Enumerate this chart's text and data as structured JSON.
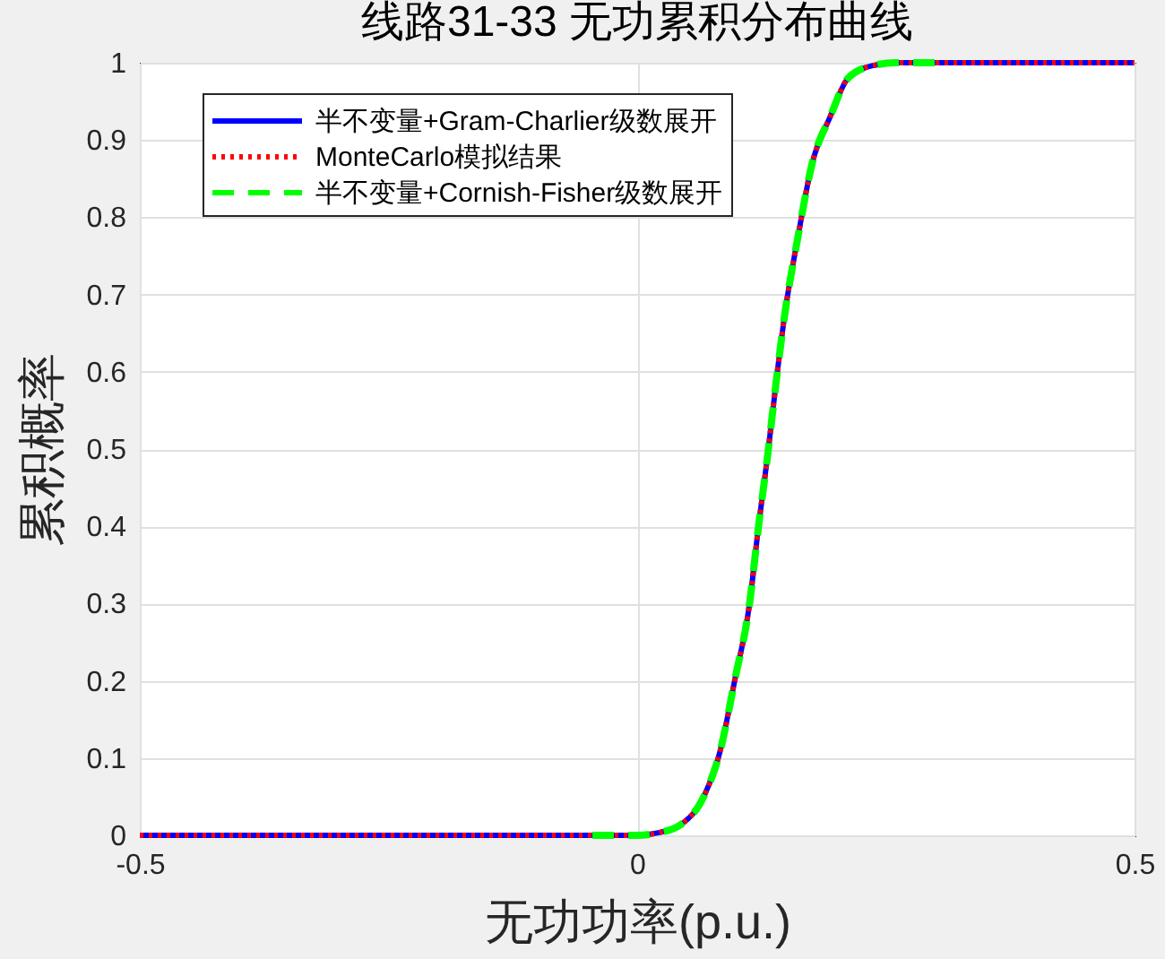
{
  "chart_data": {
    "type": "line",
    "title": "线路31-33 无功累积分布曲线",
    "xlabel": "无功功率(p.u.)",
    "ylabel": "累积概率",
    "xlim": [
      -0.5,
      0.5
    ],
    "xticks": [
      -0.5,
      0,
      0.5
    ],
    "ylim": [
      0,
      1
    ],
    "yticks": [
      0,
      0.1,
      0.2,
      0.3,
      0.4,
      0.5,
      0.6,
      0.7,
      0.8,
      0.9,
      1
    ],
    "grid": true,
    "legend": "top left",
    "series": [
      {
        "name": "半不变量+Gram-Charlier级数展开",
        "color": "#0000ff",
        "line_style": "solid",
        "x": [
          -0.5,
          0,
          0.02,
          0.044,
          0.068,
          0.083,
          0.098,
          0.113,
          0.122,
          0.131,
          0.14,
          0.149,
          0.161,
          0.176,
          0.194,
          0.212,
          0.236,
          0.26,
          0.5
        ],
        "values": [
          0,
          0,
          0.003,
          0.014,
          0.053,
          0.107,
          0.2,
          0.3,
          0.4,
          0.49,
          0.59,
          0.68,
          0.77,
          0.87,
          0.93,
          0.98,
          0.996,
          1,
          1
        ]
      },
      {
        "name": "MonteCarlo模拟结果",
        "color": "#ff0000",
        "line_style": "dotted",
        "x": [
          -0.5,
          0,
          0.02,
          0.044,
          0.068,
          0.083,
          0.098,
          0.113,
          0.122,
          0.131,
          0.14,
          0.149,
          0.161,
          0.176,
          0.194,
          0.212,
          0.236,
          0.26,
          0.5
        ],
        "values": [
          0,
          0,
          0.003,
          0.014,
          0.053,
          0.107,
          0.2,
          0.3,
          0.4,
          0.49,
          0.59,
          0.68,
          0.77,
          0.87,
          0.93,
          0.98,
          0.996,
          1,
          1
        ]
      },
      {
        "name": "半不变量+Cornish-Fisher级数展开",
        "color": "#00ff00",
        "line_style": "dashed",
        "x": [
          -0.045,
          0,
          0.02,
          0.044,
          0.068,
          0.083,
          0.098,
          0.113,
          0.122,
          0.131,
          0.14,
          0.149,
          0.161,
          0.176,
          0.194,
          0.212,
          0.236,
          0.26,
          0.31
        ],
        "values": [
          0,
          0,
          0.003,
          0.014,
          0.053,
          0.107,
          0.2,
          0.3,
          0.4,
          0.49,
          0.59,
          0.68,
          0.77,
          0.87,
          0.93,
          0.98,
          0.996,
          1,
          1
        ]
      }
    ]
  }
}
